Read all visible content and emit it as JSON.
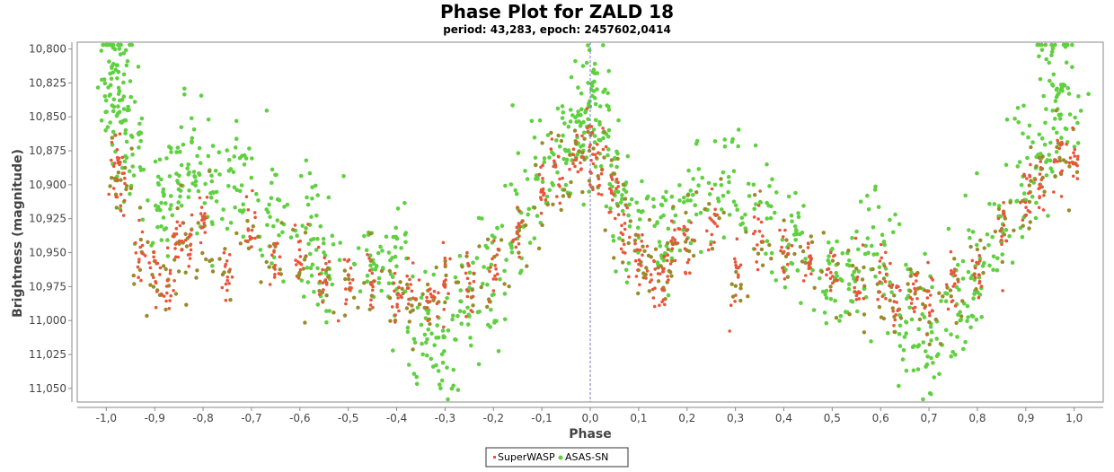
{
  "chart_data": {
    "type": "scatter",
    "title": "Phase Plot for ZALD 18",
    "subtitle": "period: 43,283, epoch: 2457602,0414",
    "xlabel": "Phase",
    "ylabel": "Brightness (magnitude)",
    "xlim": [
      -1.06,
      1.06
    ],
    "ylim": [
      11.06,
      10.795
    ],
    "y_inverted": true,
    "x_ticks": [
      -1.0,
      -0.9,
      -0.8,
      -0.7,
      -0.6,
      -0.5,
      -0.4,
      -0.3,
      -0.2,
      -0.1,
      0.0,
      0.1,
      0.2,
      0.3,
      0.4,
      0.5,
      0.6,
      0.7,
      0.8,
      0.9,
      1.0
    ],
    "x_tick_labels": [
      "-1,0",
      "-0,9",
      "-0,8",
      "-0,7",
      "-0,6",
      "-0,5",
      "-0,4",
      "-0,3",
      "-0,2",
      "-0,1",
      "0,0",
      "0,1",
      "0,2",
      "0,3",
      "0,4",
      "0,5",
      "0,6",
      "0,7",
      "0,8",
      "0,9",
      "1,0"
    ],
    "y_ticks": [
      10.8,
      10.825,
      10.85,
      10.875,
      10.9,
      10.925,
      10.95,
      10.975,
      11.0,
      11.025,
      11.05
    ],
    "y_tick_labels": [
      "10,800",
      "10,825",
      "10,850",
      "10,875",
      "10,900",
      "10,925",
      "10,950",
      "10,975",
      "11,000",
      "11,025",
      "11,050"
    ],
    "reference_line_x": 0.0,
    "grid": false,
    "legend_position": "bottom-center",
    "colors": {
      "superwasp": "#e8553a",
      "asassn": "#5fd040",
      "overlap": "#9a8a2a",
      "reference_line": "#7777cc"
    },
    "series": [
      {
        "name": "SuperWASP",
        "color": "#e8553a",
        "marker_size": 2,
        "description_points": [
          [
            -0.98,
            10.885
          ],
          [
            -0.97,
            10.9
          ],
          [
            -0.93,
            10.955
          ],
          [
            -0.9,
            10.965
          ],
          [
            -0.87,
            10.975
          ],
          [
            -0.85,
            10.94
          ],
          [
            -0.83,
            10.945
          ],
          [
            -0.8,
            10.93
          ],
          [
            -0.75,
            10.965
          ],
          [
            -0.7,
            10.935
          ],
          [
            -0.65,
            10.95
          ],
          [
            -0.6,
            10.955
          ],
          [
            -0.55,
            10.965
          ],
          [
            -0.5,
            10.975
          ],
          [
            -0.45,
            10.97
          ],
          [
            -0.4,
            10.985
          ],
          [
            -0.37,
            10.98
          ],
          [
            -0.33,
            10.985
          ],
          [
            -0.3,
            10.975
          ],
          [
            -0.25,
            10.975
          ],
          [
            -0.2,
            10.96
          ],
          [
            -0.15,
            10.935
          ],
          [
            -0.1,
            10.905
          ],
          [
            -0.07,
            10.895
          ],
          [
            -0.03,
            10.88
          ],
          [
            0.0,
            10.88
          ],
          [
            0.02,
            10.885
          ],
          [
            0.05,
            10.905
          ],
          [
            0.07,
            10.935
          ],
          [
            0.1,
            10.955
          ],
          [
            0.13,
            10.965
          ],
          [
            0.15,
            10.975
          ],
          [
            0.17,
            10.94
          ],
          [
            0.2,
            10.945
          ],
          [
            0.25,
            10.93
          ],
          [
            0.3,
            10.965
          ],
          [
            0.35,
            10.935
          ],
          [
            0.4,
            10.95
          ],
          [
            0.45,
            10.955
          ],
          [
            0.5,
            10.965
          ],
          [
            0.55,
            10.975
          ],
          [
            0.6,
            10.97
          ],
          [
            0.63,
            10.985
          ],
          [
            0.67,
            10.98
          ],
          [
            0.7,
            10.985
          ],
          [
            0.75,
            10.975
          ],
          [
            0.8,
            10.96
          ],
          [
            0.85,
            10.935
          ],
          [
            0.9,
            10.905
          ],
          [
            0.93,
            10.895
          ],
          [
            0.97,
            10.88
          ],
          [
            1.0,
            10.885
          ]
        ]
      },
      {
        "name": "ASAS-SN",
        "color": "#5fd040",
        "marker_size": 2,
        "description_points": [
          [
            -0.98,
            10.84
          ],
          [
            -0.96,
            10.83
          ],
          [
            -0.99,
            10.805
          ],
          [
            -0.95,
            10.87
          ],
          [
            -0.9,
            10.92
          ],
          [
            -0.85,
            10.9
          ],
          [
            -0.82,
            10.88
          ],
          [
            -0.78,
            10.91
          ],
          [
            -0.72,
            10.9
          ],
          [
            -0.65,
            10.92
          ],
          [
            -0.58,
            10.94
          ],
          [
            -0.55,
            10.95
          ],
          [
            -0.45,
            10.96
          ],
          [
            -0.4,
            10.95
          ],
          [
            -0.35,
            11.0
          ],
          [
            -0.3,
            11.02
          ],
          [
            -0.25,
            10.99
          ],
          [
            -0.2,
            10.97
          ],
          [
            -0.15,
            10.93
          ],
          [
            -0.1,
            10.89
          ],
          [
            -0.05,
            10.87
          ],
          [
            -0.02,
            10.85
          ],
          [
            0.0,
            10.83
          ],
          [
            0.03,
            10.86
          ],
          [
            0.05,
            10.9
          ],
          [
            0.1,
            10.94
          ],
          [
            0.15,
            10.93
          ],
          [
            0.2,
            10.91
          ],
          [
            0.28,
            10.9
          ],
          [
            0.35,
            10.92
          ],
          [
            0.42,
            10.94
          ],
          [
            0.5,
            10.96
          ],
          [
            0.55,
            10.97
          ],
          [
            0.6,
            10.95
          ],
          [
            0.65,
            11.0
          ],
          [
            0.7,
            11.02
          ],
          [
            0.75,
            10.99
          ],
          [
            0.8,
            10.97
          ],
          [
            0.85,
            10.93
          ],
          [
            0.9,
            10.89
          ],
          [
            0.95,
            10.87
          ],
          [
            0.98,
            10.84
          ],
          [
            0.96,
            10.805
          ]
        ]
      }
    ]
  }
}
